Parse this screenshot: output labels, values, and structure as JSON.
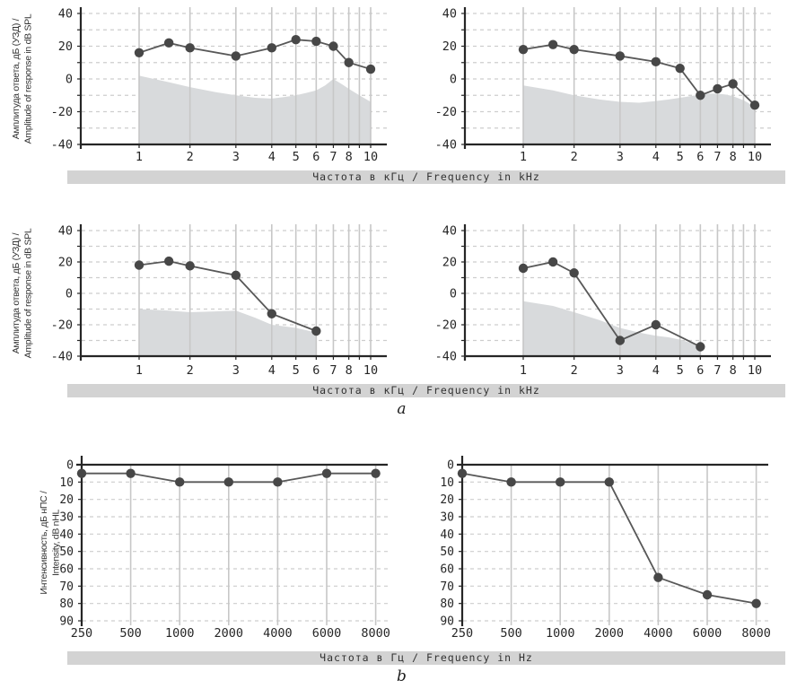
{
  "figure": {
    "section_a_label": "a",
    "section_b_label": "b",
    "strip_khz": "Частота в кГц / Frequency in kHz",
    "strip_hz": "Частота в Гц / Frequency in Hz"
  },
  "chart_data": [
    {
      "id": "dpgram-top-left",
      "type": "line",
      "section": "a",
      "position": "top-left",
      "ylabel_ru": "Амплитуда ответа, дБ (УЗД) /",
      "ylabel_en": "Amplitude of response in dB SPL",
      "xlabel": "Частота в кГц / Frequency in kHz",
      "xscale": "log",
      "xticks": [
        1,
        2,
        3,
        4,
        5,
        6,
        7,
        8,
        10
      ],
      "yticks": [
        40,
        20,
        0,
        -20,
        -40
      ],
      "ylim": [
        -40,
        40
      ],
      "grid": true,
      "x": [
        1,
        1.5,
        2,
        3,
        4,
        5,
        6,
        7,
        8,
        10
      ],
      "response": [
        16,
        22,
        19,
        14,
        19,
        24,
        23,
        20,
        10,
        6
      ],
      "noise_floor": [
        [
          1,
          2
        ],
        [
          1.5,
          -2
        ],
        [
          2,
          -5
        ],
        [
          2.5,
          -8
        ],
        [
          3,
          -10
        ],
        [
          3.5,
          -11.5
        ],
        [
          4,
          -12
        ],
        [
          4.5,
          -11
        ],
        [
          5,
          -10
        ],
        [
          5.5,
          -8.5
        ],
        [
          6,
          -7
        ],
        [
          6.5,
          -4
        ],
        [
          7,
          0
        ],
        [
          7.5,
          -3
        ],
        [
          8,
          -6
        ],
        [
          9,
          -10
        ],
        [
          10,
          -14
        ]
      ]
    },
    {
      "id": "dpgram-top-right",
      "type": "line",
      "section": "a",
      "position": "top-right",
      "ylabel_ru": null,
      "ylabel_en": null,
      "xlabel": "Частота в кГц / Frequency in kHz",
      "xscale": "log",
      "xticks": [
        1,
        2,
        3,
        4,
        5,
        6,
        7,
        8,
        10
      ],
      "yticks": [
        40,
        20,
        0,
        -20,
        -40
      ],
      "ylim": [
        -40,
        40
      ],
      "grid": true,
      "x": [
        1,
        1.5,
        2,
        3,
        4,
        5,
        6,
        7,
        8,
        10
      ],
      "response": [
        18,
        21,
        18,
        14,
        10.5,
        6.5,
        -10,
        -6,
        -3,
        -16
      ],
      "noise_floor": [
        [
          1,
          -4
        ],
        [
          1.5,
          -7
        ],
        [
          2,
          -10
        ],
        [
          2.5,
          -12.5
        ],
        [
          3,
          -14
        ],
        [
          3.5,
          -14.5
        ],
        [
          4,
          -13.5
        ],
        [
          4.5,
          -12.5
        ],
        [
          5,
          -11.5
        ],
        [
          5.5,
          -10.5
        ],
        [
          6,
          -9.5
        ],
        [
          6.5,
          -9
        ],
        [
          7,
          -9
        ],
        [
          7.5,
          -9.5
        ],
        [
          8,
          -10.5
        ],
        [
          9,
          -13
        ],
        [
          10,
          -17
        ]
      ]
    },
    {
      "id": "dpgram-mid-left",
      "type": "line",
      "section": "a",
      "position": "mid-left",
      "ylabel_ru": "Амплитуда ответа, дБ (УЗД) /",
      "ylabel_en": "Amplitude of response in dB SPL",
      "xlabel": "Частота в кГц / Frequency in kHz",
      "xscale": "log",
      "xticks": [
        1,
        2,
        3,
        4,
        5,
        6,
        7,
        8,
        10
      ],
      "yticks": [
        40,
        20,
        0,
        -20,
        -40
      ],
      "ylim": [
        -40,
        40
      ],
      "grid": true,
      "x": [
        1,
        1.5,
        2,
        3,
        4,
        6
      ],
      "response": [
        18,
        20.5,
        17.5,
        11.5,
        -13,
        -24
      ],
      "noise_floor": [
        [
          1,
          -10
        ],
        [
          1.5,
          -11
        ],
        [
          2,
          -12
        ],
        [
          2.5,
          -11.5
        ],
        [
          3,
          -11
        ],
        [
          3.5,
          -15.5
        ],
        [
          4,
          -20
        ],
        [
          4.5,
          -21
        ],
        [
          5,
          -22
        ],
        [
          5.5,
          -23.5
        ],
        [
          6,
          -25
        ]
      ]
    },
    {
      "id": "dpgram-mid-right",
      "type": "line",
      "section": "a",
      "position": "mid-right",
      "ylabel_ru": null,
      "ylabel_en": null,
      "xlabel": "Частота в кГц / Frequency in kHz",
      "xscale": "log",
      "xticks": [
        1,
        2,
        3,
        4,
        5,
        6,
        7,
        8,
        10
      ],
      "yticks": [
        40,
        20,
        0,
        -20,
        -40
      ],
      "ylim": [
        -40,
        40
      ],
      "grid": true,
      "x": [
        1,
        1.5,
        2,
        3,
        4,
        6
      ],
      "response": [
        16,
        20,
        13,
        -30,
        -20,
        -34
      ],
      "noise_floor": [
        [
          1,
          -5
        ],
        [
          1.5,
          -8
        ],
        [
          2,
          -12
        ],
        [
          2.5,
          -17
        ],
        [
          3,
          -22
        ],
        [
          3.5,
          -25
        ],
        [
          4,
          -27
        ],
        [
          4.5,
          -28
        ],
        [
          5,
          -29.5
        ],
        [
          5.5,
          -31.5
        ],
        [
          6,
          -33.5
        ]
      ]
    },
    {
      "id": "audiogram-left",
      "type": "line",
      "section": "b",
      "position": "bottom-left",
      "ylabel_ru": "Интенсивность, дБ нПС /",
      "ylabel_en": "Intensity, dB nHL",
      "xlabel": "Частота в Гц / Frequency in Hz",
      "xscale": "categorical",
      "xticks": [
        250,
        500,
        1000,
        2000,
        4000,
        6000,
        8000
      ],
      "yticks": [
        0,
        10,
        20,
        30,
        40,
        50,
        60,
        70,
        80,
        90
      ],
      "ylim": [
        90,
        0
      ],
      "y_inverted": true,
      "grid": true,
      "x": [
        250,
        500,
        1000,
        2000,
        4000,
        6000,
        8000
      ],
      "response": [
        5,
        5,
        10,
        10,
        10,
        5,
        5
      ]
    },
    {
      "id": "audiogram-right",
      "type": "line",
      "section": "b",
      "position": "bottom-right",
      "ylabel_ru": null,
      "ylabel_en": null,
      "xlabel": "Частота в Гц / Frequency in Hz",
      "xscale": "categorical",
      "xticks": [
        250,
        500,
        1000,
        2000,
        4000,
        6000,
        8000
      ],
      "yticks": [
        0,
        10,
        20,
        30,
        40,
        50,
        60,
        70,
        80,
        90
      ],
      "ylim": [
        90,
        0
      ],
      "y_inverted": true,
      "grid": true,
      "x": [
        250,
        500,
        1000,
        2000,
        4000,
        6000,
        8000
      ],
      "response": [
        5,
        10,
        10,
        10,
        65,
        75,
        80
      ]
    }
  ]
}
